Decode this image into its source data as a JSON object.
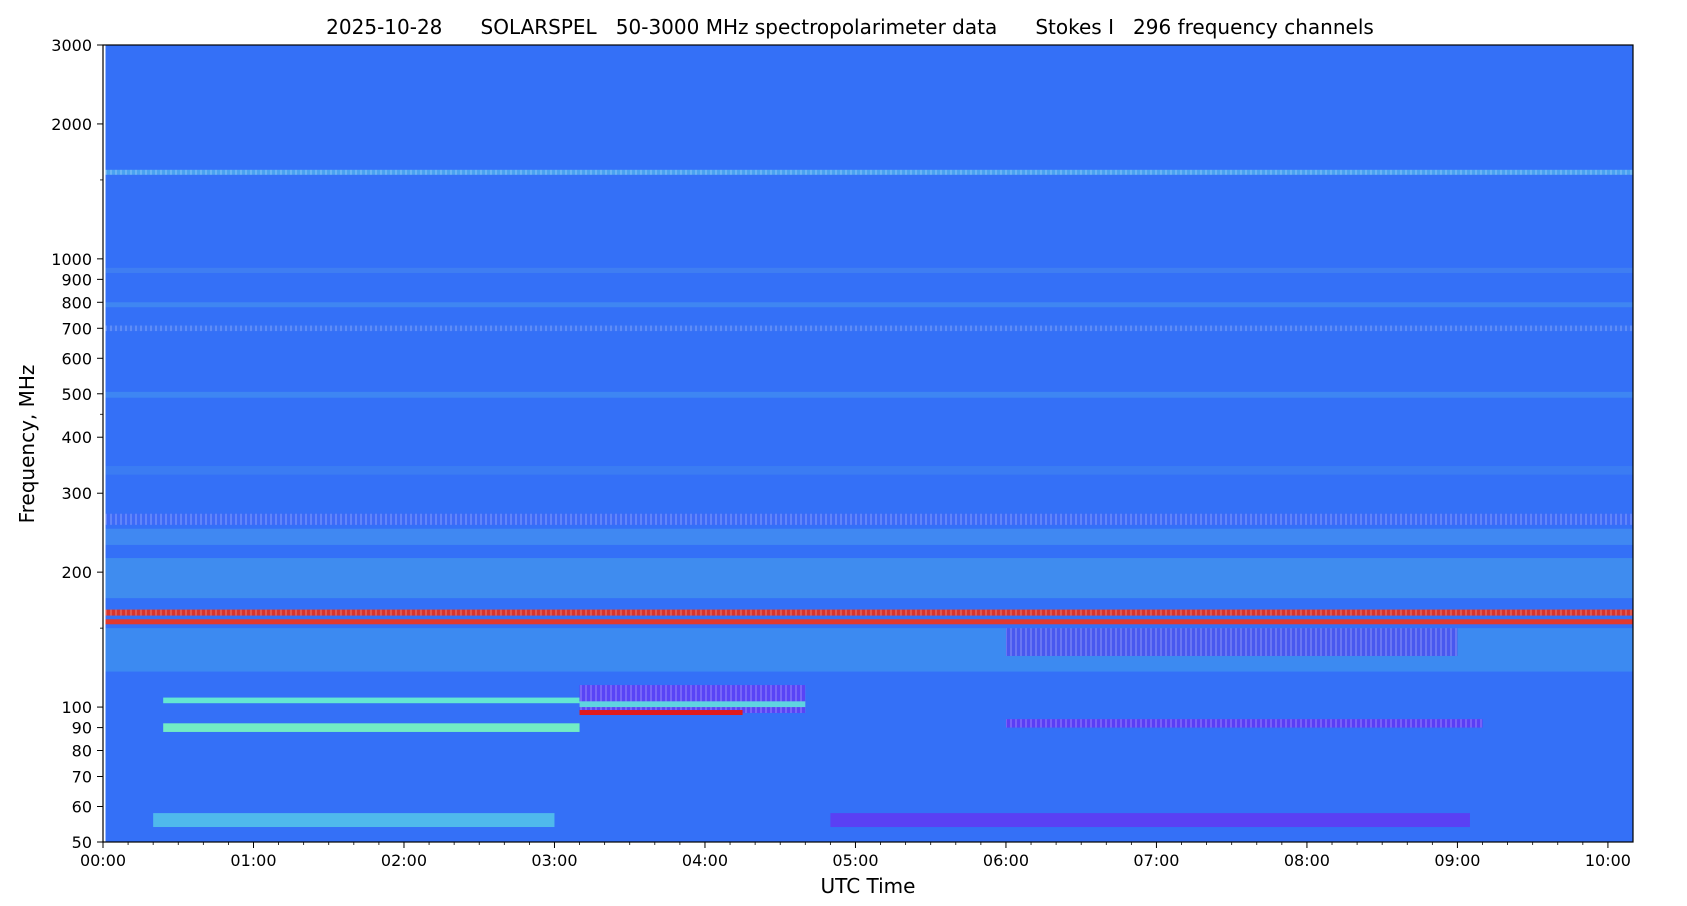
{
  "chart_data": {
    "type": "heatmap",
    "title": "2025-10-28      SOLARSPEL   50-3000 MHz spectropolarimeter data      Stokes I   296 frequency channels",
    "xlabel": "UTC Time",
    "ylabel": "Frequency, MHz",
    "y_scale": "log",
    "ylim": [
      50,
      3000
    ],
    "xlim": [
      "00:00",
      "10:10"
    ],
    "x_tick_labels": [
      "00:00",
      "01:00",
      "02:00",
      "03:00",
      "04:00",
      "05:00",
      "06:00",
      "07:00",
      "08:00",
      "09:00",
      "10:00"
    ],
    "x_tick_minutes": [
      0,
      60,
      120,
      180,
      240,
      300,
      360,
      420,
      480,
      540,
      600
    ],
    "data_start_minute": 1,
    "y_tick_values": [
      50,
      60,
      70,
      80,
      90,
      100,
      200,
      300,
      400,
      500,
      600,
      700,
      800,
      900,
      1000,
      2000,
      3000
    ],
    "y_tick_labels": [
      "50",
      "60",
      "70",
      "80",
      "90",
      "100",
      "200",
      "300",
      "400",
      "500",
      "600",
      "700",
      "800",
      "900",
      "1000",
      "2000",
      "3000"
    ],
    "y_minor_ticks": [
      150,
      450,
      1500
    ],
    "colormap": "jet",
    "background_color": "#3470f7",
    "features": [
      {
        "kind": "band",
        "f_lo": 1540,
        "f_hi": 1580,
        "t_start": 1,
        "t_end": 610,
        "color": "#4aa3f2"
      },
      {
        "kind": "band",
        "f_lo": 930,
        "f_hi": 955,
        "t_start": 1,
        "t_end": 610,
        "color": "#3f7ef2"
      },
      {
        "kind": "band",
        "f_lo": 780,
        "f_hi": 800,
        "t_start": 1,
        "t_end": 610,
        "color": "#3f86f2"
      },
      {
        "kind": "band",
        "f_lo": 690,
        "f_hi": 710,
        "t_start": 1,
        "t_end": 610,
        "color": "#3b74f5"
      },
      {
        "kind": "band",
        "f_lo": 490,
        "f_hi": 505,
        "t_start": 1,
        "t_end": 610,
        "color": "#3e86f3"
      },
      {
        "kind": "band",
        "f_lo": 330,
        "f_hi": 345,
        "t_start": 1,
        "t_end": 610,
        "color": "#3b7cf3"
      },
      {
        "kind": "band",
        "f_lo": 255,
        "f_hi": 270,
        "t_start": 1,
        "t_end": 610,
        "color": "#3e6af8"
      },
      {
        "kind": "band",
        "f_lo": 230,
        "f_hi": 250,
        "t_start": 1,
        "t_end": 610,
        "color": "#4088f2"
      },
      {
        "kind": "band",
        "f_lo": 175,
        "f_hi": 215,
        "t_start": 1,
        "t_end": 610,
        "color": "#3f8cef"
      },
      {
        "kind": "band",
        "f_lo": 160,
        "f_hi": 165,
        "t_start": 1,
        "t_end": 610,
        "color": "#d8342c"
      },
      {
        "kind": "band",
        "f_lo": 153,
        "f_hi": 157,
        "t_start": 1,
        "t_end": 610,
        "color": "#e2392f"
      },
      {
        "kind": "band",
        "f_lo": 120,
        "f_hi": 150,
        "t_start": 1,
        "t_end": 610,
        "color": "#3c8af1"
      },
      {
        "kind": "band",
        "f_lo": 130,
        "f_hi": 150,
        "t_start": 360,
        "t_end": 540,
        "color": "#4858ef"
      },
      {
        "kind": "band",
        "f_lo": 102,
        "f_hi": 105,
        "t_start": 24,
        "t_end": 190,
        "color": "#63e7d2"
      },
      {
        "kind": "band",
        "f_lo": 88,
        "f_hi": 92,
        "t_start": 24,
        "t_end": 190,
        "color": "#72ecc4"
      },
      {
        "kind": "band",
        "f_lo": 97,
        "f_hi": 112,
        "t_start": 190,
        "t_end": 280,
        "color": "#5944f6"
      },
      {
        "kind": "band",
        "f_lo": 96,
        "f_hi": 98.5,
        "t_start": 190,
        "t_end": 255,
        "color": "#e01b1b"
      },
      {
        "kind": "band",
        "f_lo": 100,
        "f_hi": 103,
        "t_start": 190,
        "t_end": 280,
        "color": "#5fd4e0"
      },
      {
        "kind": "band",
        "f_lo": 90,
        "f_hi": 94,
        "t_start": 360,
        "t_end": 550,
        "color": "#5a3ef5"
      },
      {
        "kind": "band",
        "f_lo": 54,
        "f_hi": 58,
        "t_start": 20,
        "t_end": 180,
        "color": "#4fb9ec"
      },
      {
        "kind": "band",
        "f_lo": 54,
        "f_hi": 58,
        "t_start": 290,
        "t_end": 545,
        "color": "#5a40f4"
      }
    ]
  }
}
